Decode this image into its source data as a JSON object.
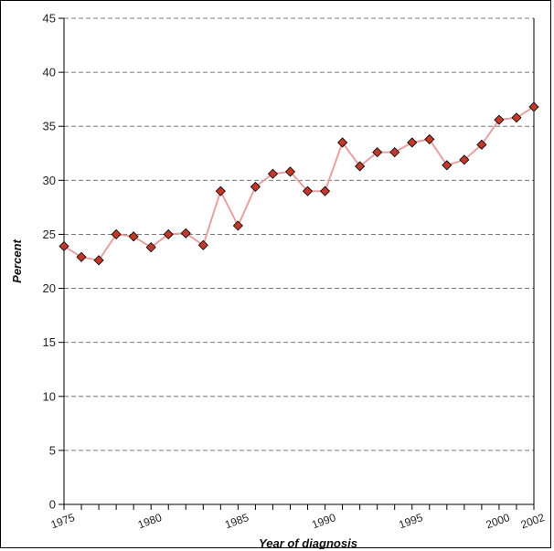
{
  "chart_data": {
    "type": "line",
    "xlabel": "Year of diagnosis",
    "ylabel": "Percent",
    "xlim": [
      1975,
      2002
    ],
    "ylim": [
      0,
      45
    ],
    "x_ticks": [
      1975,
      1980,
      1985,
      1990,
      1995,
      2000,
      2002
    ],
    "y_ticks": [
      0,
      5,
      10,
      15,
      20,
      25,
      30,
      35,
      40,
      45
    ],
    "grid": "horizontal-dashed",
    "line_color": "#e8a0a0",
    "marker_color": "#c0392b",
    "series": [
      {
        "x": [
          1975,
          1976,
          1977,
          1978,
          1979,
          1980,
          1981,
          1982,
          1983,
          1984,
          1985,
          1986,
          1987,
          1988,
          1989,
          1990,
          1991,
          1992,
          1993,
          1994,
          1995,
          1996,
          1997,
          1998,
          1999,
          2000,
          2001,
          2002
        ],
        "values": [
          23.9,
          22.9,
          22.6,
          25.0,
          24.8,
          23.8,
          25.0,
          25.1,
          24.0,
          29.0,
          25.8,
          29.4,
          30.6,
          30.8,
          29.0,
          29.0,
          33.5,
          31.3,
          32.6,
          32.6,
          33.5,
          33.8,
          31.4,
          31.9,
          33.3,
          35.6,
          35.8,
          36.8
        ]
      }
    ]
  }
}
